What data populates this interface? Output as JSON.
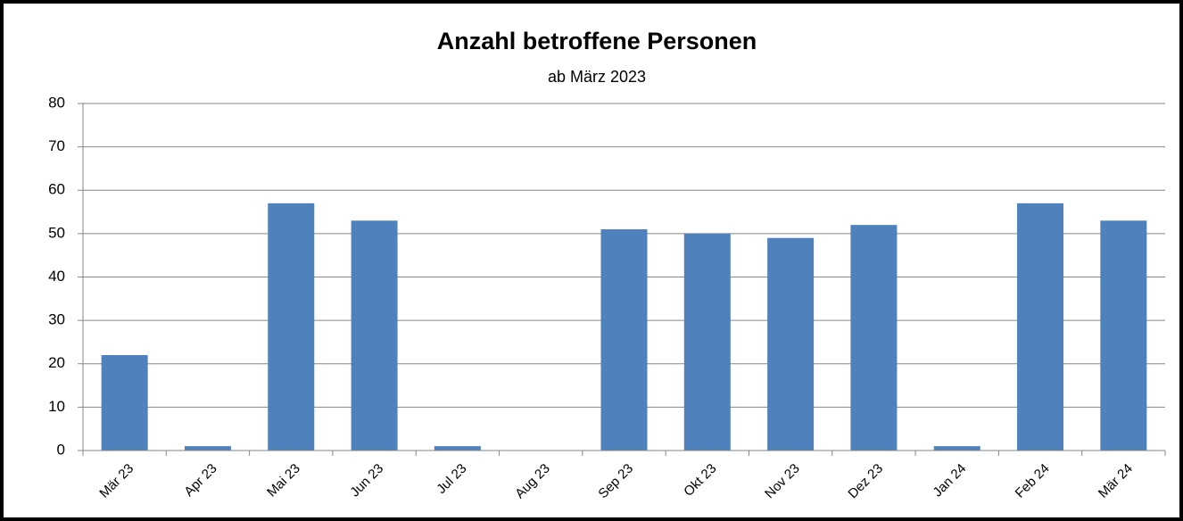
{
  "chart_data": {
    "type": "bar",
    "title": "Anzahl betroffene Personen",
    "subtitle": "ab März 2023",
    "categories": [
      "Mär 23",
      "Apr 23",
      "Mai 23",
      "Jun 23",
      "Jul 23",
      "Aug 23",
      "Sep 23",
      "Okt 23",
      "Nov 23",
      "Dez 23",
      "Jan 24",
      "Feb 24",
      "Mär 24"
    ],
    "values": [
      22,
      1,
      57,
      53,
      1,
      0,
      51,
      50,
      49,
      52,
      1,
      57,
      53
    ],
    "color": "#4f81bd",
    "ylim": [
      0,
      80
    ],
    "yticks": [
      0,
      10,
      20,
      30,
      40,
      50,
      60,
      70,
      80
    ],
    "grid": true
  }
}
